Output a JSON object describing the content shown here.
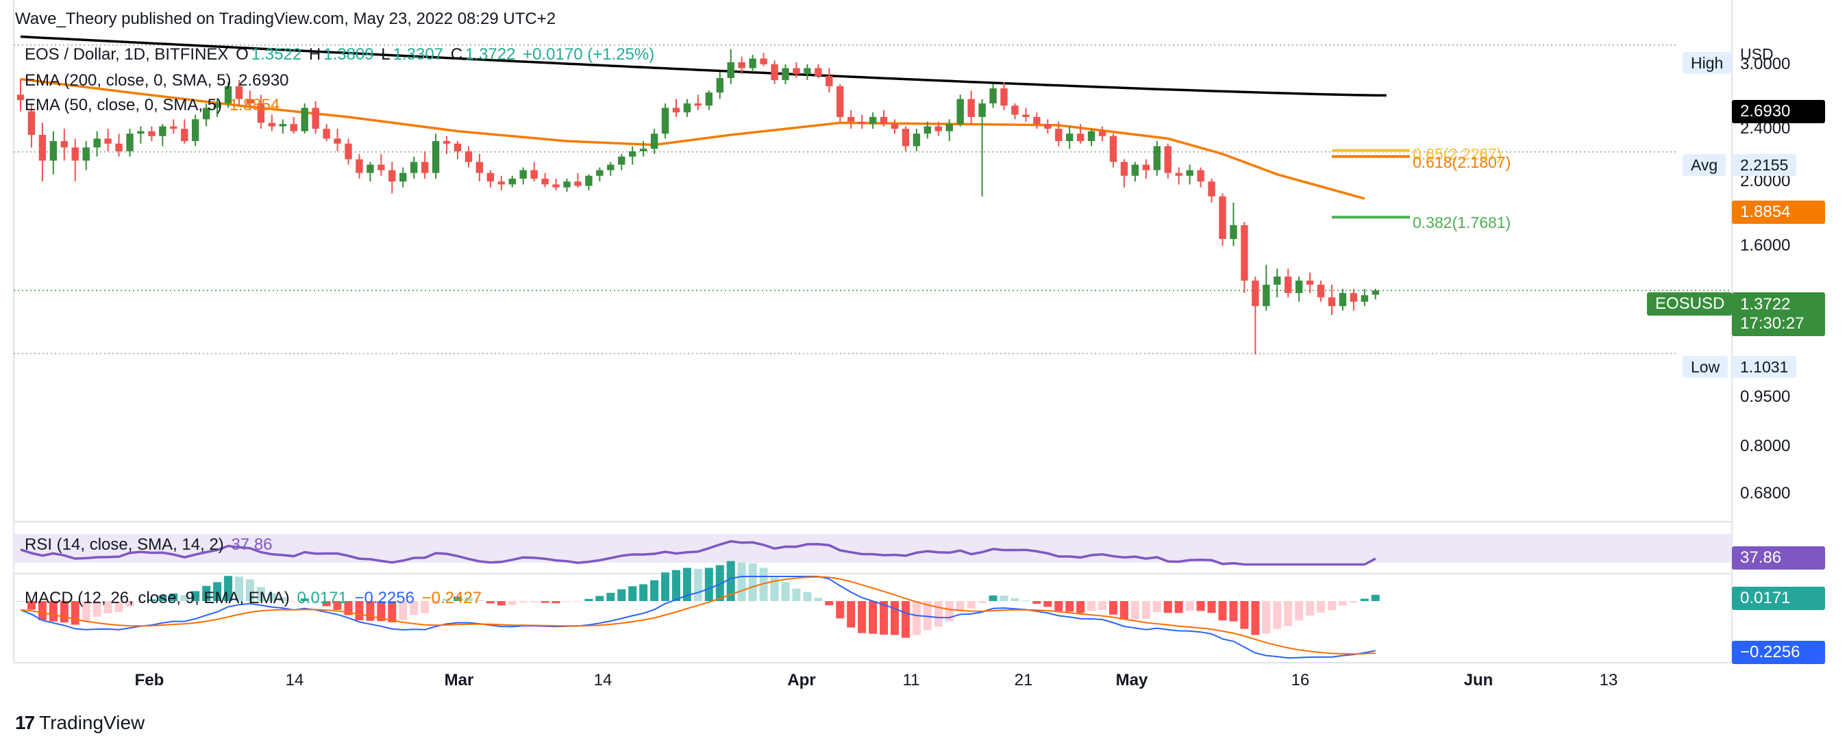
{
  "header": {
    "publisher": "Wave_Theory published on TradingView.com, May 23, 2022 08:29 UTC+2"
  },
  "legend": {
    "symbol": "EOS / Dollar, 1D, BITFINEX",
    "ohlc": {
      "o_label": "O",
      "o": "1.3522",
      "h_label": "H",
      "h": "1.3809",
      "l_label": "L",
      "l": "1.3307",
      "c_label": "C",
      "c": "1.3722",
      "change": "+0.0170 (+1.25%)"
    },
    "ema200": {
      "label": "EMA (200, close, 0, SMA, 5)",
      "value": "2.6930"
    },
    "ema50": {
      "label": "EMA (50, close, 0, SMA, 5)",
      "value": "1.8854"
    },
    "rsi": {
      "label": "RSI (14, close, SMA, 14, 2)",
      "value": "37.86"
    },
    "macd": {
      "label": "MACD (12, 26, close, 9, EMA, EMA)",
      "hist": "0.0171",
      "macd": "−0.2256",
      "signal": "−0.2427"
    }
  },
  "price_axis": {
    "currency": "USD",
    "ticks": [
      "3.0000",
      "2.4000",
      "2.0000",
      "1.6000",
      "0.9500",
      "0.8000",
      "0.6800"
    ]
  },
  "tags": {
    "high_label": "High",
    "avg_label": "Avg",
    "avg_value": "2.2155",
    "low_label": "Low",
    "low_value": "1.1031",
    "ema200_value": "2.6930",
    "ema50_value": "1.8854",
    "symbol_tag": "EOSUSD",
    "last_price": "1.3722",
    "countdown": "17:30:27",
    "rsi_value": "37.86",
    "macd_hist_value": "0.0171",
    "macd_value": "−0.2256"
  },
  "fib": {
    "f065": "0.65(2.2267)",
    "f0618": "0.618(2.1807)",
    "f0382": "0.382(1.7681)"
  },
  "time_axis": {
    "ticks": [
      {
        "label": "Feb",
        "bold": true
      },
      {
        "label": "14",
        "bold": false
      },
      {
        "label": "Mar",
        "bold": true
      },
      {
        "label": "14",
        "bold": false
      },
      {
        "label": "Apr",
        "bold": true
      },
      {
        "label": "11",
        "bold": false
      },
      {
        "label": "21",
        "bold": false
      },
      {
        "label": "May",
        "bold": true
      },
      {
        "label": "16",
        "bold": false
      },
      {
        "label": "Jun",
        "bold": true
      },
      {
        "label": "13",
        "bold": false
      }
    ]
  },
  "footer": {
    "brand": "TradingView"
  },
  "colors": {
    "up": "#26a69a",
    "candle_up": "#388e3c",
    "down": "#ef5350",
    "ema200": "#000000",
    "ema50": "#f57c00",
    "rsi": "#7e57c2",
    "macd": "#2962ff",
    "signal": "#ff6d00",
    "fib382": "#4caf50",
    "fib618": "#f57c00",
    "fib65": "#fbc02d",
    "last": "#388e3c"
  },
  "chart_data": {
    "type": "candlestick",
    "symbol": "EOSUSD",
    "timeframe": "1D",
    "x_start": "2022-01-23",
    "ylim": [
      0.6,
      3.25
    ],
    "y_scale": "log",
    "candles": [
      [
        2.7,
        2.85,
        2.55,
        2.65
      ],
      [
        2.55,
        2.62,
        2.25,
        2.35
      ],
      [
        2.35,
        2.45,
        2.0,
        2.15
      ],
      [
        2.15,
        2.38,
        2.05,
        2.3
      ],
      [
        2.3,
        2.4,
        2.15,
        2.25
      ],
      [
        2.25,
        2.32,
        2.0,
        2.15
      ],
      [
        2.15,
        2.3,
        2.08,
        2.25
      ],
      [
        2.25,
        2.38,
        2.18,
        2.32
      ],
      [
        2.32,
        2.4,
        2.22,
        2.28
      ],
      [
        2.28,
        2.36,
        2.18,
        2.22
      ],
      [
        2.22,
        2.4,
        2.18,
        2.36
      ],
      [
        2.36,
        2.42,
        2.28,
        2.38
      ],
      [
        2.38,
        2.42,
        2.3,
        2.34
      ],
      [
        2.34,
        2.44,
        2.26,
        2.42
      ],
      [
        2.42,
        2.48,
        2.36,
        2.4
      ],
      [
        2.4,
        2.48,
        2.28,
        2.3
      ],
      [
        2.3,
        2.52,
        2.26,
        2.48
      ],
      [
        2.48,
        2.62,
        2.42,
        2.58
      ],
      [
        2.58,
        2.66,
        2.5,
        2.62
      ],
      [
        2.62,
        2.82,
        2.58,
        2.78
      ],
      [
        2.78,
        2.84,
        2.6,
        2.66
      ],
      [
        2.66,
        2.74,
        2.56,
        2.62
      ],
      [
        2.62,
        2.7,
        2.4,
        2.45
      ],
      [
        2.45,
        2.52,
        2.38,
        2.42
      ],
      [
        2.42,
        2.48,
        2.36,
        2.44
      ],
      [
        2.44,
        2.5,
        2.36,
        2.38
      ],
      [
        2.38,
        2.62,
        2.36,
        2.58
      ],
      [
        2.58,
        2.64,
        2.36,
        2.4
      ],
      [
        2.4,
        2.44,
        2.3,
        2.32
      ],
      [
        2.32,
        2.4,
        2.22,
        2.28
      ],
      [
        2.28,
        2.32,
        2.12,
        2.16
      ],
      [
        2.16,
        2.2,
        2.02,
        2.06
      ],
      [
        2.06,
        2.14,
        2.0,
        2.12
      ],
      [
        2.12,
        2.2,
        2.04,
        2.08
      ],
      [
        2.08,
        2.14,
        1.92,
        2.0
      ],
      [
        2.0,
        2.1,
        1.96,
        2.06
      ],
      [
        2.06,
        2.18,
        2.02,
        2.14
      ],
      [
        2.14,
        2.22,
        2.02,
        2.06
      ],
      [
        2.06,
        2.36,
        2.02,
        2.3
      ],
      [
        2.3,
        2.34,
        2.2,
        2.28
      ],
      [
        2.28,
        2.3,
        2.16,
        2.22
      ],
      [
        2.22,
        2.26,
        2.1,
        2.14
      ],
      [
        2.14,
        2.2,
        2.0,
        2.06
      ],
      [
        2.06,
        2.08,
        1.96,
        2.0
      ],
      [
        2.0,
        2.04,
        1.94,
        1.98
      ],
      [
        1.98,
        2.04,
        1.96,
        2.02
      ],
      [
        2.02,
        2.1,
        1.98,
        2.08
      ],
      [
        2.08,
        2.14,
        2.0,
        2.02
      ],
      [
        2.02,
        2.06,
        1.96,
        1.98
      ],
      [
        1.98,
        2.02,
        1.94,
        1.96
      ],
      [
        1.96,
        2.02,
        1.93,
        2.0
      ],
      [
        2.0,
        2.06,
        1.96,
        1.97
      ],
      [
        1.97,
        2.05,
        1.94,
        2.04
      ],
      [
        2.04,
        2.1,
        2.0,
        2.08
      ],
      [
        2.08,
        2.14,
        2.04,
        2.12
      ],
      [
        2.12,
        2.2,
        2.08,
        2.18
      ],
      [
        2.18,
        2.26,
        2.12,
        2.22
      ],
      [
        2.22,
        2.3,
        2.18,
        2.24
      ],
      [
        2.24,
        2.4,
        2.2,
        2.36
      ],
      [
        2.36,
        2.62,
        2.32,
        2.58
      ],
      [
        2.58,
        2.66,
        2.5,
        2.54
      ],
      [
        2.54,
        2.66,
        2.5,
        2.62
      ],
      [
        2.62,
        2.7,
        2.56,
        2.6
      ],
      [
        2.6,
        2.74,
        2.56,
        2.72
      ],
      [
        2.72,
        2.92,
        2.66,
        2.86
      ],
      [
        2.86,
        3.16,
        2.8,
        3.02
      ],
      [
        3.02,
        3.08,
        2.9,
        2.96
      ],
      [
        2.96,
        3.1,
        2.92,
        3.06
      ],
      [
        3.06,
        3.12,
        2.98,
        3.0
      ],
      [
        3.0,
        3.04,
        2.8,
        2.84
      ],
      [
        2.84,
        3.0,
        2.8,
        2.96
      ],
      [
        2.96,
        3.02,
        2.86,
        2.9
      ],
      [
        2.9,
        3.0,
        2.84,
        2.96
      ],
      [
        2.96,
        3.0,
        2.86,
        2.88
      ],
      [
        2.88,
        2.96,
        2.72,
        2.78
      ],
      [
        2.78,
        2.8,
        2.46,
        2.5
      ],
      [
        2.5,
        2.56,
        2.4,
        2.46
      ],
      [
        2.46,
        2.52,
        2.4,
        2.44
      ],
      [
        2.44,
        2.54,
        2.4,
        2.5
      ],
      [
        2.5,
        2.56,
        2.42,
        2.44
      ],
      [
        2.44,
        2.48,
        2.36,
        2.4
      ],
      [
        2.4,
        2.42,
        2.22,
        2.26
      ],
      [
        2.26,
        2.4,
        2.22,
        2.36
      ],
      [
        2.36,
        2.46,
        2.32,
        2.42
      ],
      [
        2.42,
        2.46,
        2.34,
        2.38
      ],
      [
        2.38,
        2.48,
        2.3,
        2.44
      ],
      [
        2.44,
        2.7,
        2.42,
        2.66
      ],
      [
        2.66,
        2.74,
        2.44,
        2.5
      ],
      [
        2.5,
        2.66,
        1.9,
        2.62
      ],
      [
        2.62,
        2.8,
        2.58,
        2.76
      ],
      [
        2.76,
        2.82,
        2.56,
        2.6
      ],
      [
        2.6,
        2.62,
        2.48,
        2.52
      ],
      [
        2.52,
        2.58,
        2.46,
        2.5
      ],
      [
        2.5,
        2.54,
        2.4,
        2.44
      ],
      [
        2.44,
        2.48,
        2.36,
        2.4
      ],
      [
        2.4,
        2.46,
        2.26,
        2.3
      ],
      [
        2.3,
        2.42,
        2.24,
        2.36
      ],
      [
        2.36,
        2.44,
        2.28,
        2.3
      ],
      [
        2.3,
        2.4,
        2.26,
        2.38
      ],
      [
        2.38,
        2.42,
        2.3,
        2.34
      ],
      [
        2.34,
        2.36,
        2.1,
        2.14
      ],
      [
        2.14,
        2.16,
        1.96,
        2.04
      ],
      [
        2.04,
        2.14,
        2.0,
        2.12
      ],
      [
        2.12,
        2.16,
        2.02,
        2.08
      ],
      [
        2.08,
        2.3,
        2.04,
        2.26
      ],
      [
        2.26,
        2.28,
        2.02,
        2.06
      ],
      [
        2.06,
        2.1,
        1.98,
        2.04
      ],
      [
        2.04,
        2.12,
        1.98,
        2.08
      ],
      [
        2.08,
        2.1,
        1.96,
        2.0
      ],
      [
        2.0,
        2.02,
        1.86,
        1.9
      ],
      [
        1.9,
        1.92,
        1.6,
        1.64
      ],
      [
        1.64,
        1.86,
        1.6,
        1.72
      ],
      [
        1.72,
        1.74,
        1.36,
        1.42
      ],
      [
        1.42,
        1.44,
        1.1,
        1.3
      ],
      [
        1.3,
        1.5,
        1.28,
        1.4
      ],
      [
        1.4,
        1.48,
        1.34,
        1.44
      ],
      [
        1.44,
        1.48,
        1.34,
        1.36
      ],
      [
        1.36,
        1.44,
        1.32,
        1.42
      ],
      [
        1.42,
        1.46,
        1.36,
        1.4
      ],
      [
        1.4,
        1.42,
        1.32,
        1.34
      ],
      [
        1.34,
        1.4,
        1.26,
        1.3
      ],
      [
        1.3,
        1.38,
        1.28,
        1.36
      ],
      [
        1.36,
        1.38,
        1.28,
        1.32
      ],
      [
        1.32,
        1.38,
        1.3,
        1.35
      ],
      [
        1.3522,
        1.3809,
        1.3307,
        1.3722
      ]
    ],
    "ema200": {
      "start": 3.3,
      "end": 2.693
    },
    "ema50_points": [
      [
        0,
        2.85
      ],
      [
        10,
        2.72
      ],
      [
        20,
        2.6
      ],
      [
        30,
        2.5
      ],
      [
        40,
        2.38
      ],
      [
        50,
        2.3
      ],
      [
        58,
        2.27
      ],
      [
        65,
        2.35
      ],
      [
        75,
        2.45
      ],
      [
        85,
        2.44
      ],
      [
        95,
        2.43
      ],
      [
        105,
        2.32
      ],
      [
        110,
        2.2
      ],
      [
        115,
        2.05
      ],
      [
        123,
        1.8854
      ]
    ],
    "fib_levels": [
      {
        "ratio": 0.65,
        "price": 2.2267,
        "label": "0.65(2.2267)"
      },
      {
        "ratio": 0.618,
        "price": 2.1807,
        "label": "0.618(2.1807)"
      },
      {
        "ratio": 0.382,
        "price": 1.7681,
        "label": "0.382(1.7681)"
      }
    ],
    "high_line": 3.2058,
    "avg_line": 2.2155,
    "low_line": 1.1031,
    "last_price": 1.3722,
    "rsi_last": 37.86,
    "macd_last": -0.2256,
    "signal_last": -0.2427,
    "hist_last": 0.0171
  }
}
